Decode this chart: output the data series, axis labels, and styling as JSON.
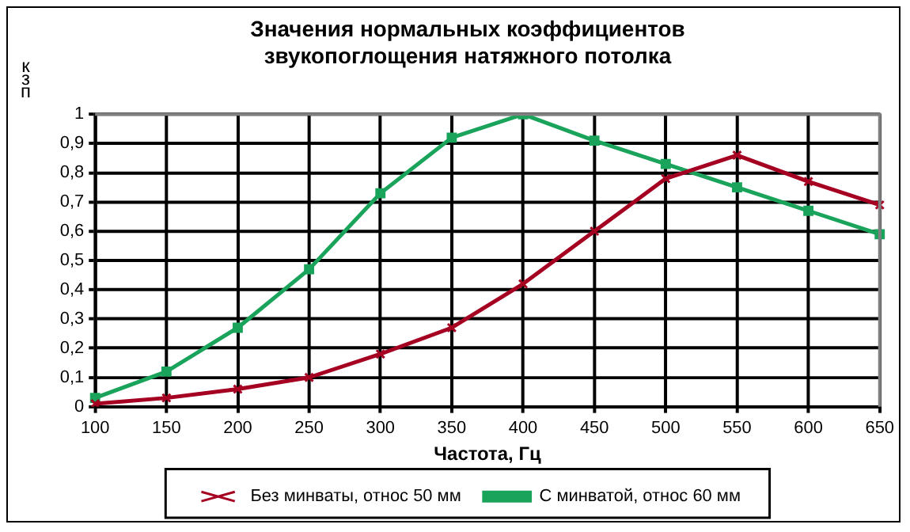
{
  "chart_data": {
    "type": "line",
    "title": "Значения нормальных коэффициентов\nзвукопоглощения натяжного потолка",
    "xlabel": "Частота, Гц",
    "ylabel": "кзп",
    "categories": [
      "100",
      "150",
      "200",
      "250",
      "300",
      "350",
      "400",
      "450",
      "500",
      "550",
      "600",
      "650"
    ],
    "series": [
      {
        "name": "Без минваты, относ 50 мм",
        "color": "#a50021",
        "marker": "cross",
        "values": [
          0.01,
          0.03,
          0.06,
          0.1,
          0.18,
          0.27,
          0.42,
          0.6,
          0.78,
          0.86,
          0.77,
          0.69
        ]
      },
      {
        "name": "С минватой, относ 60 мм",
        "color": "#1aa35a",
        "marker": "square",
        "values": [
          0.03,
          0.12,
          0.27,
          0.47,
          0.73,
          0.92,
          1.0,
          0.91,
          0.83,
          0.75,
          0.67,
          0.59
        ]
      }
    ],
    "ylim": [
      0,
      1
    ],
    "yticks": [
      0,
      {
        "value": 0.1,
        "label": "0,1"
      },
      {
        "value": 0.2,
        "label": "0,2"
      },
      {
        "value": 0.3,
        "label": "0,3"
      },
      {
        "value": 0.4,
        "label": "0,4"
      },
      {
        "value": 0.5,
        "label": "0,5"
      },
      {
        "value": 0.6,
        "label": "0,6"
      },
      {
        "value": 0.7,
        "label": "0,7"
      },
      {
        "value": 0.8,
        "label": "0,8"
      },
      {
        "value": 0.9,
        "label": "0,9"
      },
      1
    ],
    "grid": true,
    "legend": "bottom"
  }
}
